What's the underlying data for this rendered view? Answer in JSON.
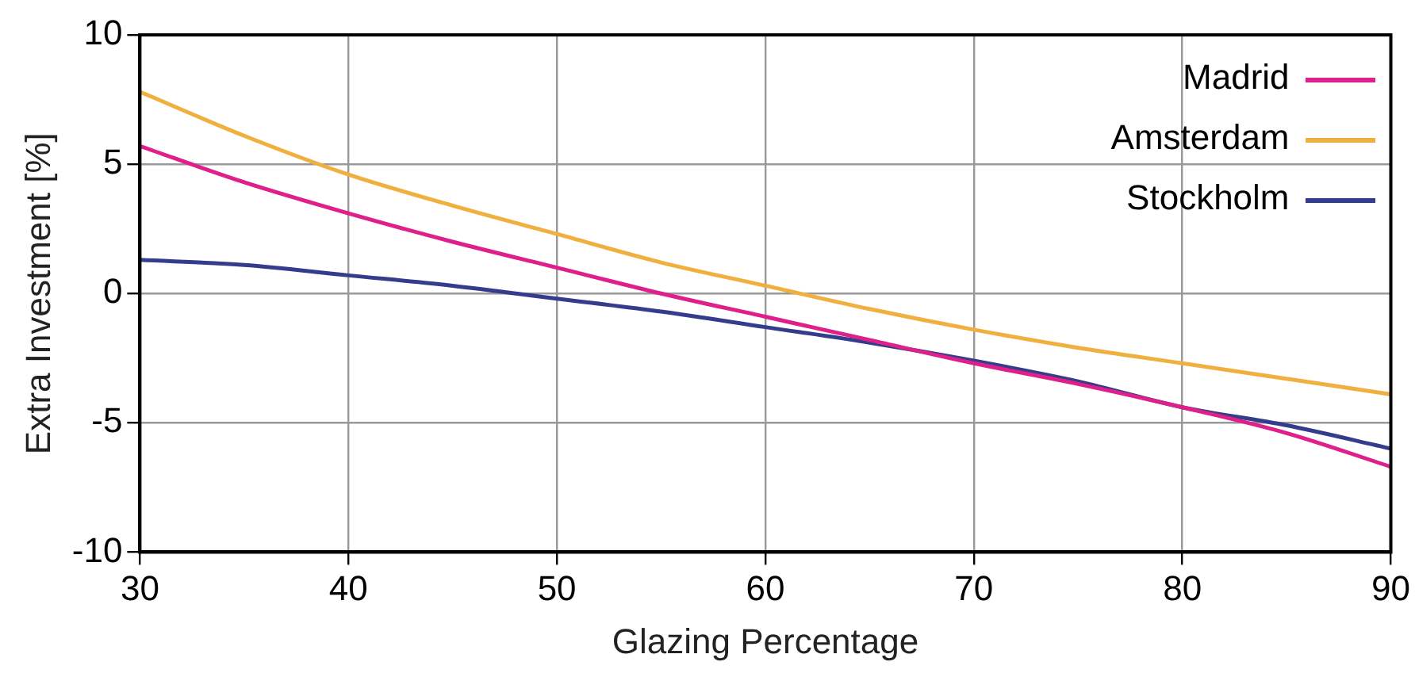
{
  "chart_data": {
    "type": "line",
    "xlabel": "Glazing Percentage",
    "ylabel": "Extra Investment [%]",
    "x": [
      30,
      35,
      40,
      45,
      50,
      55,
      60,
      65,
      70,
      75,
      80,
      85,
      90
    ],
    "series": [
      {
        "name": "Madrid",
        "color": "#e0208a",
        "values": [
          5.7,
          4.3,
          3.1,
          2.0,
          1.0,
          0.0,
          -0.9,
          -1.8,
          -2.7,
          -3.5,
          -4.4,
          -5.4,
          -6.7
        ]
      },
      {
        "name": "Amsterdam",
        "color": "#f0b040",
        "values": [
          7.8,
          6.1,
          4.6,
          3.4,
          2.3,
          1.2,
          0.3,
          -0.6,
          -1.4,
          -2.1,
          -2.7,
          -3.3,
          -3.9
        ]
      },
      {
        "name": "Stockholm",
        "color": "#343c8c",
        "values": [
          1.3,
          1.1,
          0.7,
          0.3,
          -0.2,
          -0.7,
          -1.3,
          -1.9,
          -2.6,
          -3.4,
          -4.4,
          -5.1,
          -6.0
        ]
      }
    ],
    "xlim": [
      30,
      90
    ],
    "xticks": [
      30,
      40,
      50,
      60,
      70,
      80,
      90
    ],
    "ylim": [
      -10,
      10
    ],
    "yticks": [
      -10,
      -5,
      0,
      5,
      10
    ],
    "grid": true,
    "legend": "top right",
    "marker": "none",
    "line_style": "solid"
  }
}
